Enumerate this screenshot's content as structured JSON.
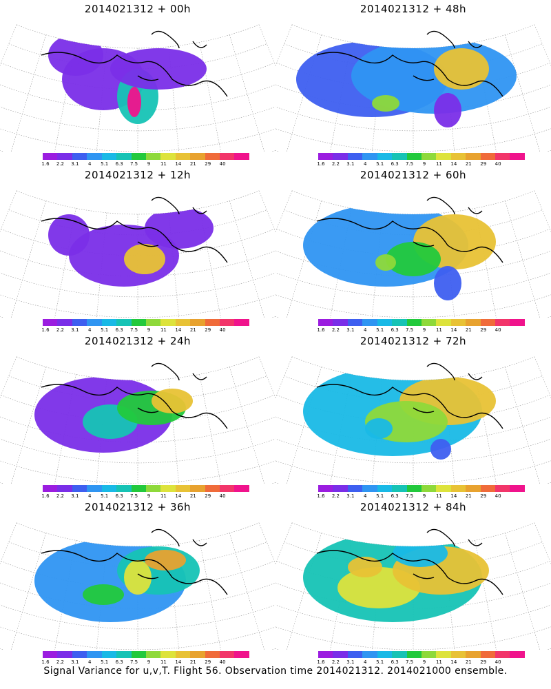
{
  "panels": [
    {
      "title": "2014021312 + 00h",
      "lead": "00h"
    },
    {
      "title": "2014021312 + 48h",
      "lead": "48h"
    },
    {
      "title": "2014021312 + 12h",
      "lead": "12h"
    },
    {
      "title": "2014021312 + 60h",
      "lead": "60h"
    },
    {
      "title": "2014021312 + 24h",
      "lead": "24h"
    },
    {
      "title": "2014021312 + 72h",
      "lead": "72h"
    },
    {
      "title": "2014021312 + 36h",
      "lead": "36h"
    },
    {
      "title": "2014021312 + 84h",
      "lead": "84h"
    }
  ],
  "colorbar": {
    "labels": [
      "1.6",
      "2.2",
      "3.1",
      "4",
      "5.1",
      "6.3",
      "7.5",
      "9",
      "11",
      "14",
      "21",
      "29",
      "40"
    ],
    "colors": [
      "#9b1de0",
      "#7a2ee8",
      "#3e5ff0",
      "#2f95f2",
      "#19b9e6",
      "#16c3b5",
      "#22c93c",
      "#8ed93a",
      "#dde33c",
      "#e8c235",
      "#e8a22f",
      "#f06b3a",
      "#f2356a",
      "#f0138c"
    ]
  },
  "caption": "Signal Variance for u,v,T. Flight 56. Observation time 2014021312. 2014021000 ensemble."
}
